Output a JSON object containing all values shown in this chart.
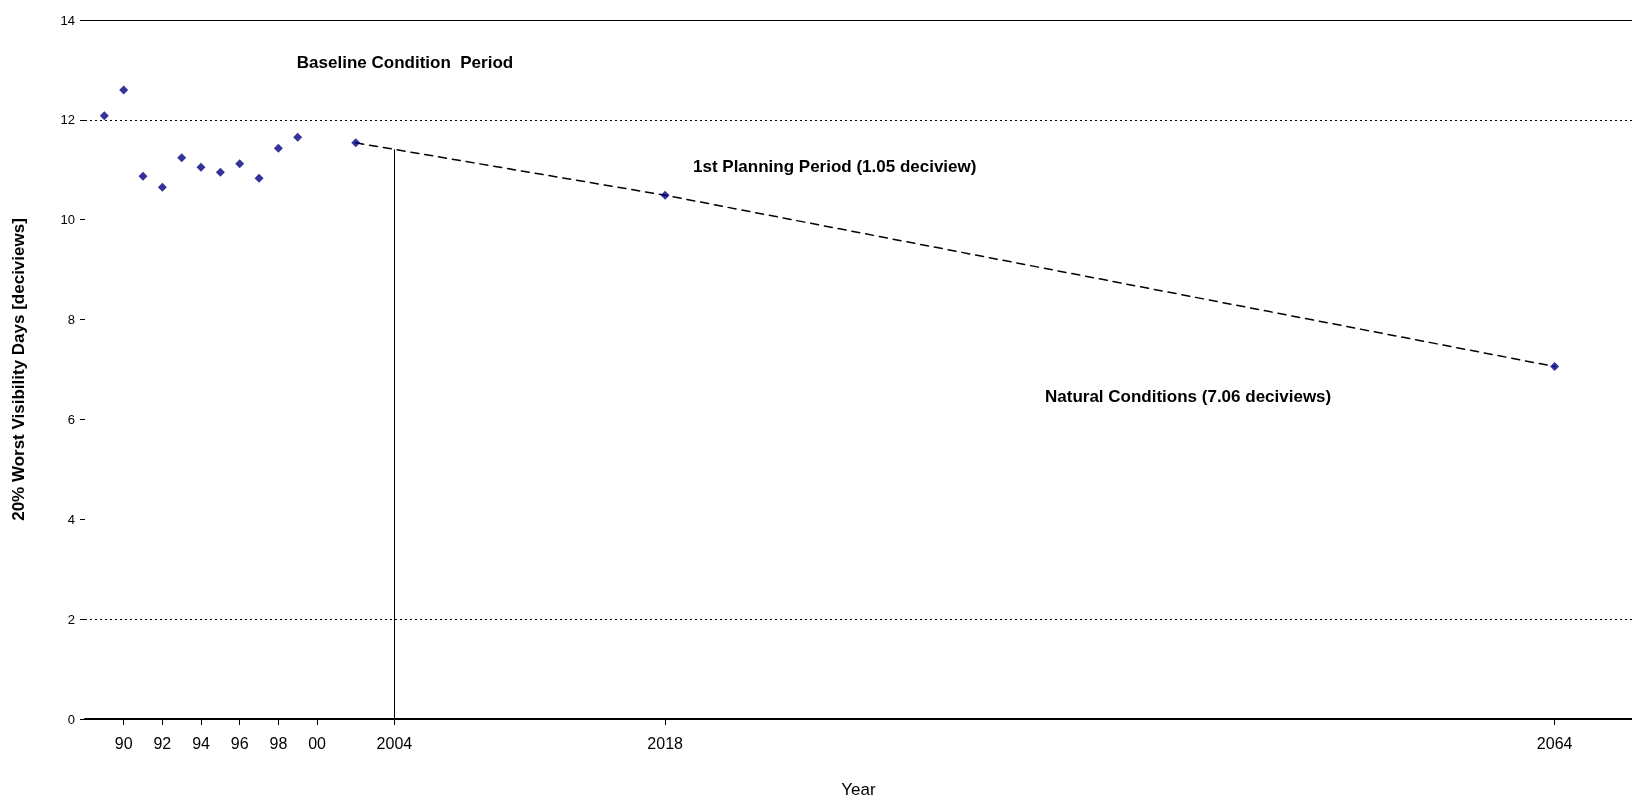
{
  "chart_data": {
    "type": "scatter",
    "xlabel": "Year",
    "ylabel": "20% Worst Visibility Days [deciviews]",
    "x": [
      1989,
      1990,
      1991,
      1992,
      1993,
      1994,
      1995,
      1996,
      1997,
      1998,
      1999,
      2002,
      2018,
      2064
    ],
    "series": [
      {
        "color": "#000080",
        "values": [
          12.08,
          12.6,
          10.87,
          10.65,
          11.24,
          11.05,
          10.95,
          11.12,
          10.83,
          11.43,
          11.65,
          11.54,
          10.49,
          7.06
        ]
      },
      {
        "type": "line",
        "color": "#000000",
        "line_style": "dashed",
        "marker": "none",
        "x": [
          2002,
          2018,
          2064
        ],
        "values": [
          11.54,
          10.49,
          7.06
        ]
      }
    ],
    "marker": "diamond",
    "xlim": [
      1988,
      2068
    ],
    "xticks": [
      {
        "value": 1990,
        "label": "90"
      },
      {
        "value": 1992,
        "label": "92"
      },
      {
        "value": 1994,
        "label": "94"
      },
      {
        "value": 1996,
        "label": "96"
      },
      {
        "value": 1998,
        "label": "98"
      },
      {
        "value": 2000,
        "label": "00"
      },
      2004,
      2018,
      2064
    ],
    "ylim": [
      0,
      14
    ],
    "yticks": [
      0,
      2,
      4,
      6,
      8,
      10,
      12,
      14
    ],
    "grid": false,
    "ref_lines": [
      {
        "axis": "y",
        "value": 12,
        "line_style": "dotted",
        "color": "#000000"
      },
      {
        "axis": "y",
        "value": 2,
        "line_style": "dotted",
        "color": "#000000"
      },
      {
        "axis": "y",
        "value": 14,
        "line_style": "solid",
        "color": "#000000"
      },
      {
        "axis": "x",
        "value": 2004,
        "line_style": "solid",
        "color": "#000000"
      }
    ],
    "annotations": [
      "Baseline Condition  Period",
      "1st Planning Period (1.05 deciview)",
      "Natural Conditions (7.06 deciviews)"
    ]
  }
}
